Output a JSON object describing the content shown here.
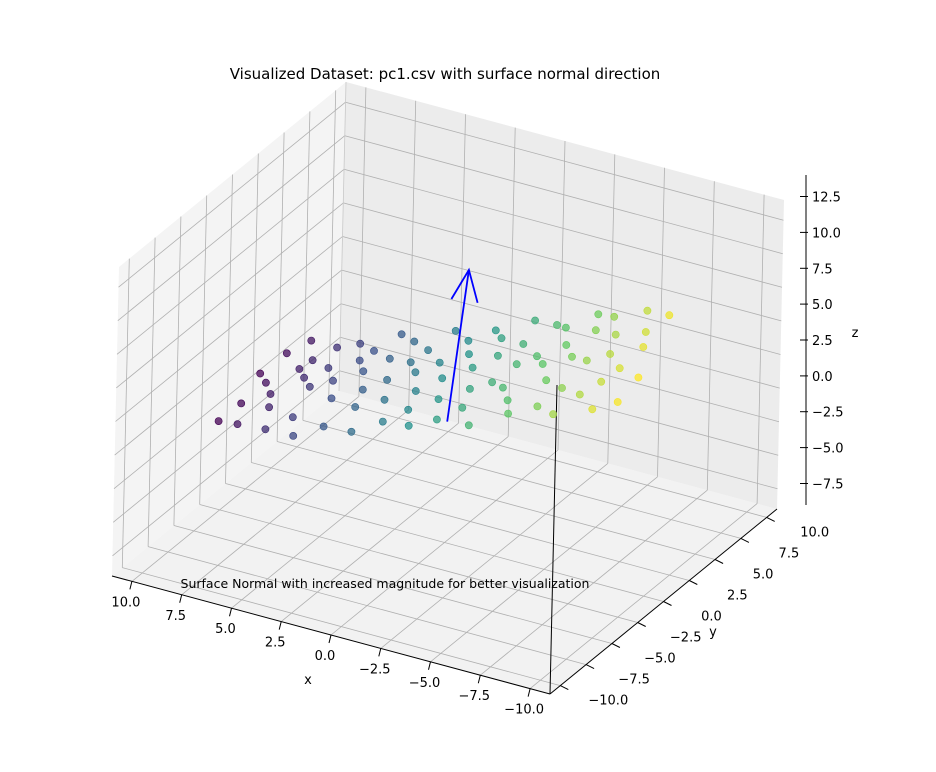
{
  "chart_data": {
    "type": "scatter",
    "projection": "3d",
    "title": "Visualized Dataset: pc1.csv with surface normal direction",
    "annotation": "Surface Normal with increased magnitude for better visualization",
    "xlabel": "x",
    "ylabel": "y",
    "zlabel": "z",
    "xlim": [
      -11,
      11
    ],
    "ylim": [
      -11,
      11
    ],
    "zlim": [
      -9,
      14
    ],
    "x_ticks": [
      -10.0,
      -7.5,
      -5.0,
      -2.5,
      0.0,
      2.5,
      5.0,
      7.5,
      10.0
    ],
    "y_ticks": [
      -10.0,
      -7.5,
      -5.0,
      -2.5,
      0.0,
      2.5,
      5.0,
      7.5,
      10.0
    ],
    "z_ticks": [
      -7.5,
      -5.0,
      -2.5,
      0.0,
      2.5,
      5.0,
      7.5,
      10.0,
      12.5
    ],
    "x_tick_labels": [
      "−10.0",
      "−7.5",
      "−5.0",
      "−2.5",
      "0.0",
      "2.5",
      "5.0",
      "7.5",
      "10.0"
    ],
    "y_tick_labels": [
      "−10.0",
      "−7.5",
      "−5.0",
      "−2.5",
      "0.0",
      "2.5",
      "5.0",
      "7.5",
      "10.0"
    ],
    "z_tick_labels": [
      "−7.5",
      "−5.0",
      "−2.5",
      "0.0",
      "2.5",
      "5.0",
      "7.5",
      "10.0",
      "12.5"
    ],
    "grid": true,
    "colormap": "viridis",
    "color_by": "point height above the fitted plane",
    "pane_color": "#f2f2f2",
    "grid_color": "#b0b0b0",
    "normal_vector": {
      "color": "#0000ff",
      "start": [
        0.0,
        0.0,
        0.0
      ],
      "end": [
        0.1,
        2.0,
        10.0
      ]
    },
    "series": [
      {
        "points": [
          [
            -10.0,
            -1.0,
            7.9
          ],
          [
            -9.8,
            -2.6,
            7.0
          ],
          [
            -9.5,
            2.9,
            9.9
          ],
          [
            -9.2,
            1.0,
            8.6
          ],
          [
            -9.0,
            -3.5,
            6.7
          ],
          [
            -8.8,
            -0.5,
            7.8
          ],
          [
            -8.6,
            2.4,
            8.6
          ],
          [
            -8.3,
            -1.3,
            7.1
          ],
          [
            -8.1,
            3.5,
            9.3
          ],
          [
            -7.9,
            0.3,
            8.0
          ],
          [
            -7.6,
            -2.0,
            6.3
          ],
          [
            -7.4,
            1.8,
            8.3
          ],
          [
            -7.2,
            -3.8,
            5.8
          ],
          [
            -6.9,
            0.0,
            7.3
          ],
          [
            -6.7,
            3.0,
            8.6
          ],
          [
            -6.5,
            -1.6,
            6.1
          ],
          [
            -6.2,
            2.2,
            7.9
          ],
          [
            -6.0,
            -3.0,
            5.4
          ],
          [
            -5.8,
            0.7,
            6.7
          ],
          [
            -5.5,
            3.8,
            7.8
          ],
          [
            -5.3,
            -0.8,
            5.7
          ],
          [
            -5.1,
            1.5,
            6.8
          ],
          [
            -4.8,
            -3.5,
            4.7
          ],
          [
            -4.6,
            0.2,
            6.0
          ],
          [
            -4.4,
            2.8,
            7.0
          ],
          [
            -4.1,
            -2.2,
            4.6
          ],
          [
            -3.9,
            1.0,
            5.8
          ],
          [
            -3.7,
            3.3,
            6.6
          ],
          [
            -3.4,
            -1.3,
            4.7
          ],
          [
            -3.2,
            0.4,
            5.3
          ],
          [
            -3.0,
            -3.8,
            3.3
          ],
          [
            -2.7,
            2.0,
            5.6
          ],
          [
            -2.5,
            -0.6,
            4.3
          ],
          [
            -2.3,
            3.9,
            6.0
          ],
          [
            -2.0,
            -2.5,
            3.4
          ],
          [
            -1.8,
            1.3,
            4.8
          ],
          [
            -1.6,
            -1.0,
            3.7
          ],
          [
            -1.3,
            2.6,
            5.1
          ],
          [
            -1.1,
            -3.2,
            2.6
          ],
          [
            -0.9,
            0.6,
            4.0
          ],
          [
            -0.6,
            3.4,
            4.9
          ],
          [
            -0.4,
            -1.7,
            2.9
          ],
          [
            -0.2,
            1.6,
            4.1
          ],
          [
            0.1,
            -3.6,
            1.9
          ],
          [
            0.3,
            0.0,
            3.1
          ],
          [
            0.5,
            2.9,
            4.0
          ],
          [
            0.8,
            -2.3,
            2.0
          ],
          [
            1.0,
            1.1,
            3.3
          ],
          [
            1.2,
            -0.8,
            2.3
          ],
          [
            1.5,
            3.6,
            3.9
          ],
          [
            1.7,
            -3.0,
            1.2
          ],
          [
            1.9,
            0.5,
            2.6
          ],
          [
            2.2,
            2.3,
            3.0
          ],
          [
            2.4,
            -1.5,
            1.6
          ],
          [
            2.6,
            1.4,
            2.5
          ],
          [
            2.9,
            -3.7,
            0.4
          ],
          [
            3.1,
            0.1,
            1.8
          ],
          [
            3.3,
            3.1,
            2.7
          ],
          [
            3.6,
            -2.0,
            0.9
          ],
          [
            3.8,
            1.7,
            2.1
          ],
          [
            4.0,
            -0.5,
            1.1
          ],
          [
            4.3,
            3.8,
            2.4
          ],
          [
            4.5,
            -3.3,
            -0.1
          ],
          [
            4.7,
            0.9,
            1.3
          ],
          [
            5.0,
            2.5,
            1.7
          ],
          [
            5.2,
            -1.2,
            0.4
          ],
          [
            5.4,
            1.9,
            1.2
          ],
          [
            5.7,
            -3.9,
            -0.9
          ],
          [
            5.9,
            0.3,
            0.5
          ],
          [
            6.1,
            3.3,
            1.3
          ],
          [
            6.4,
            -2.6,
            -0.6
          ],
          [
            6.6,
            1.2,
            0.6
          ],
          [
            6.8,
            -0.2,
            0.0
          ],
          [
            7.1,
            3.0,
            0.8
          ],
          [
            7.3,
            -3.5,
            -1.3
          ],
          [
            7.5,
            0.6,
            -0.1
          ],
          [
            7.8,
            2.0,
            0.2
          ],
          [
            8.0,
            -1.8,
            -1.0
          ],
          [
            8.2,
            1.5,
            -0.3
          ],
          [
            8.5,
            -0.7,
            -0.9
          ],
          [
            8.7,
            3.6,
            0.3
          ],
          [
            8.9,
            -3.1,
            -1.8
          ],
          [
            9.2,
            0.2,
            -0.9
          ],
          [
            9.4,
            2.6,
            -0.3
          ],
          [
            9.6,
            -1.4,
            -1.6
          ],
          [
            9.9,
            1.0,
            -1.0
          ],
          [
            10.0,
            -2.8,
            -2.2
          ]
        ]
      }
    ]
  }
}
